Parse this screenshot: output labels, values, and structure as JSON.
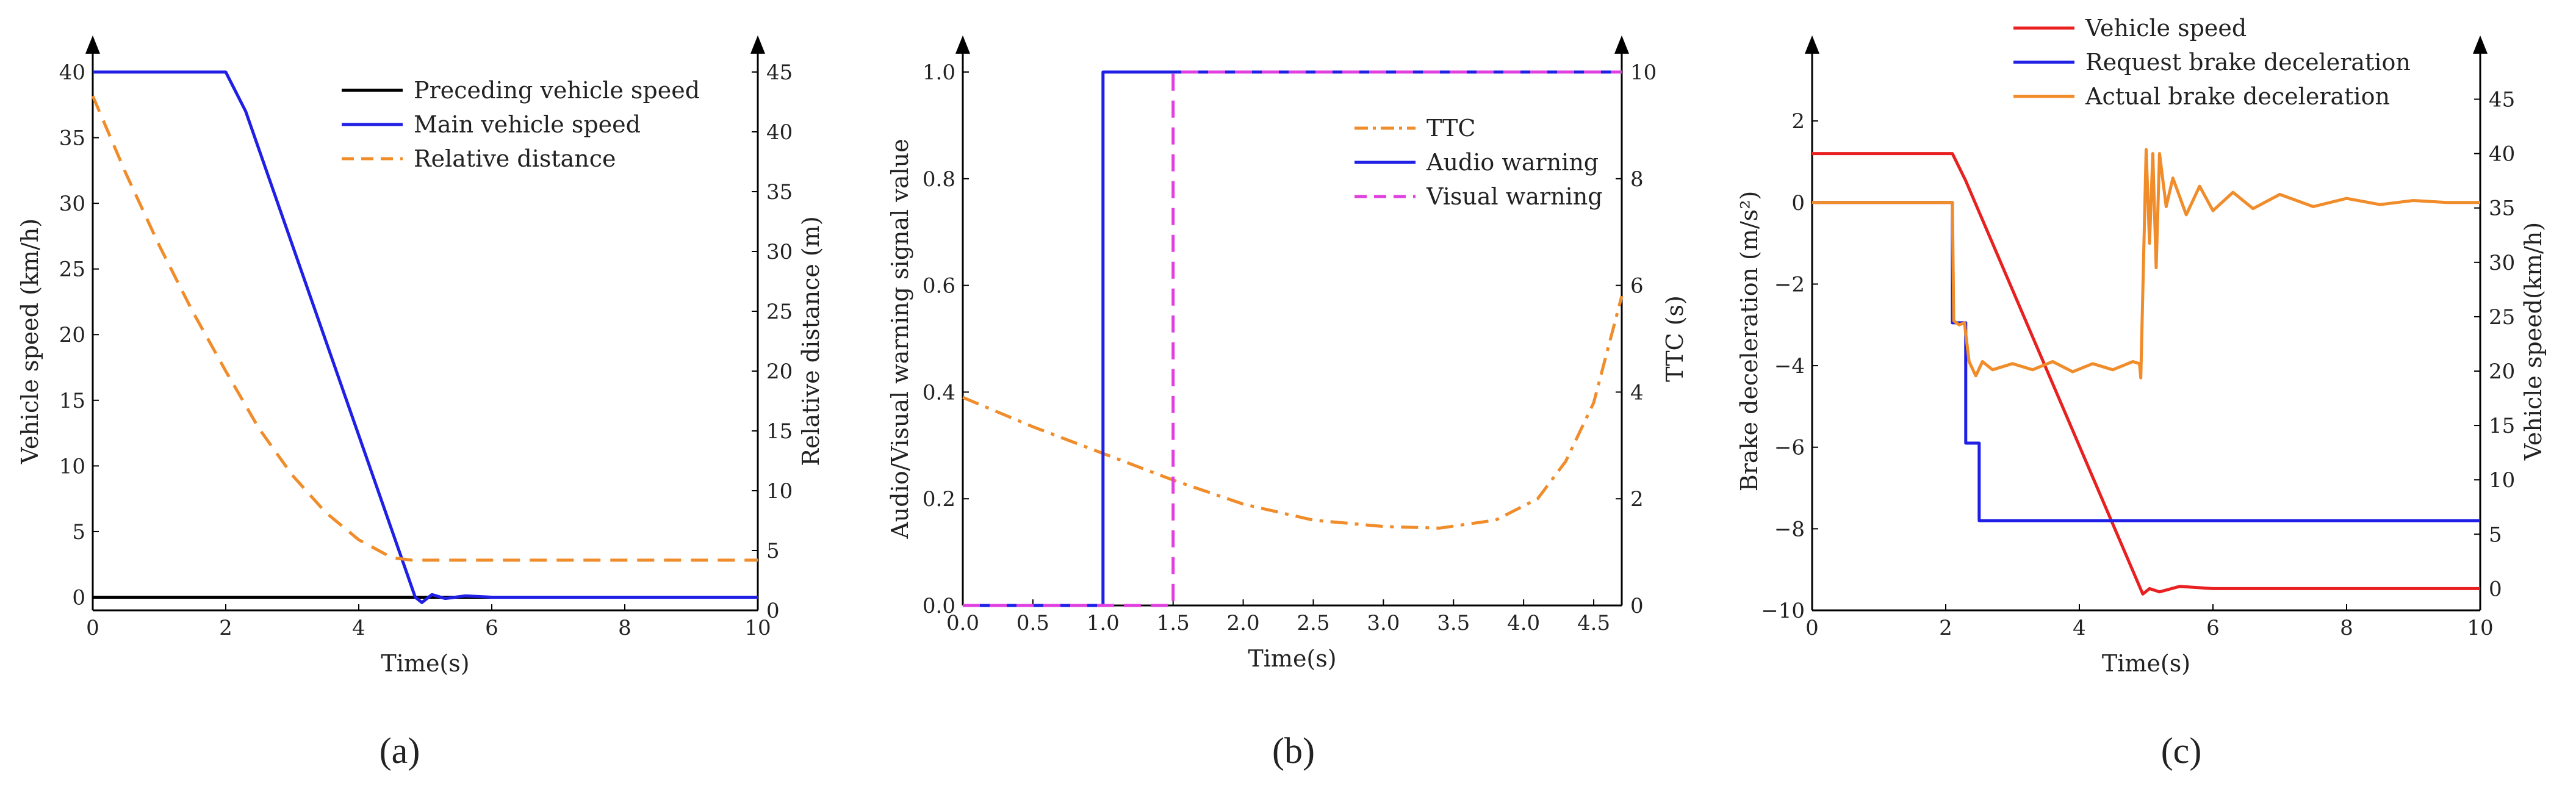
{
  "chart_data": [
    {
      "panel": "a",
      "type": "line",
      "panel_label": "(a)",
      "xlabel": "Time(s)",
      "ylabel_left": "Vehicle speed (km/h)",
      "ylabel_right": "Relative distance (m)",
      "xlim": [
        0,
        10
      ],
      "ylim_left": [
        -1,
        40
      ],
      "ylim_right": [
        0,
        45
      ],
      "xticks": [
        0,
        2,
        4,
        6,
        8,
        10
      ],
      "yticks_left": [
        0,
        5,
        10,
        15,
        20,
        25,
        30,
        35,
        40
      ],
      "yticks_right": [
        0,
        5,
        10,
        15,
        20,
        25,
        30,
        35,
        40,
        45
      ],
      "legend_position": "top-right",
      "series": [
        {
          "name": "Preceding vehicle speed",
          "axis": "left",
          "color": "#000000",
          "dash": "solid",
          "x": [
            0,
            10
          ],
          "y": [
            0,
            0
          ]
        },
        {
          "name": "Main vehicle speed",
          "axis": "left",
          "color": "#1f1fe6",
          "dash": "solid",
          "x": [
            0,
            2.0,
            2.3,
            4.85,
            4.95,
            5.1,
            5.3,
            5.6,
            6.0,
            10
          ],
          "y": [
            40,
            40,
            37,
            0,
            -0.4,
            0.2,
            -0.1,
            0.1,
            0,
            0
          ]
        },
        {
          "name": "Relative distance",
          "axis": "right",
          "color": "#f08c2a",
          "dash": "dashed",
          "x": [
            0,
            0.5,
            1,
            1.5,
            2,
            2.5,
            3,
            3.5,
            4,
            4.5,
            4.8,
            10
          ],
          "y": [
            43,
            36.5,
            30.5,
            25,
            20,
            15.2,
            11.3,
            8.2,
            5.9,
            4.4,
            4.2,
            4.2
          ]
        }
      ]
    },
    {
      "panel": "b",
      "type": "line",
      "panel_label": "(b)",
      "xlabel": "Time(s)",
      "ylabel_left": "Audio/Visual warning signal value",
      "ylabel_right": "TTC (s)",
      "xlim": [
        0,
        4.7
      ],
      "ylim_left": [
        0,
        1.0
      ],
      "ylim_right": [
        0,
        10
      ],
      "xticks": [
        0.0,
        0.5,
        1.0,
        1.5,
        2.0,
        2.5,
        3.0,
        3.5,
        4.0,
        4.5
      ],
      "xtick_labels": [
        "0.0",
        "0.5",
        "1.0",
        "1.5",
        "2.0",
        "2.5",
        "3.0",
        "3.5",
        "4.0",
        "4.5"
      ],
      "yticks_left": [
        0.0,
        0.2,
        0.4,
        0.6,
        0.8,
        1.0
      ],
      "ytick_labels_left": [
        "0.0",
        "0.2",
        "0.4",
        "0.6",
        "0.8",
        "1.0"
      ],
      "yticks_right": [
        0,
        2,
        4,
        6,
        8,
        10
      ],
      "legend_position": "top-right",
      "series": [
        {
          "name": "TTC",
          "axis": "right",
          "color": "#f08c2a",
          "dash": "dashdot",
          "x": [
            0,
            0.5,
            1.0,
            1.5,
            2.0,
            2.5,
            3.0,
            3.4,
            3.8,
            4.1,
            4.3,
            4.5,
            4.7
          ],
          "y": [
            3.9,
            3.35,
            2.85,
            2.35,
            1.9,
            1.6,
            1.48,
            1.45,
            1.6,
            2.0,
            2.7,
            3.8,
            5.8
          ]
        },
        {
          "name": "Audio warning",
          "axis": "left",
          "color": "#1f1fe6",
          "dash": "solid",
          "x": [
            0,
            1.0,
            1.0,
            4.7
          ],
          "y": [
            0,
            0,
            1,
            1
          ]
        },
        {
          "name": "Visual warning",
          "axis": "left",
          "color": "#e040e0",
          "dash": "dashed",
          "x": [
            0,
            1.5,
            1.5,
            4.7
          ],
          "y": [
            0,
            0,
            1,
            1
          ]
        }
      ]
    },
    {
      "panel": "c",
      "type": "line",
      "panel_label": "(c)",
      "xlabel": "Time(s)",
      "ylabel_left": "Brake deceleration (m/s²)",
      "ylabel_right": "Vehicle speed(km/h)",
      "xlim": [
        0,
        10
      ],
      "ylim_left": [
        -10,
        3.2
      ],
      "ylim_right": [
        -2,
        47.5
      ],
      "xticks": [
        0,
        2,
        4,
        6,
        8,
        10
      ],
      "yticks_left": [
        -10,
        -8,
        -6,
        -4,
        -2,
        0,
        2
      ],
      "ytick_labels_left": [
        "−10",
        "−8",
        "−6",
        "−4",
        "−2",
        "0",
        "2"
      ],
      "yticks_right": [
        0,
        5,
        10,
        15,
        20,
        25,
        30,
        35,
        40,
        45
      ],
      "legend_position": "top-right",
      "series": [
        {
          "name": "Vehicle speed",
          "axis": "right",
          "color": "#e82020",
          "dash": "solid",
          "x": [
            0,
            2.1,
            2.3,
            4.95,
            5.05,
            5.2,
            5.5,
            6,
            10
          ],
          "y": [
            40,
            40,
            37.5,
            -0.5,
            0,
            -0.3,
            0.2,
            0,
            0
          ]
        },
        {
          "name": "Request brake deceleration",
          "axis": "left",
          "color": "#1f1fe6",
          "dash": "solid",
          "x": [
            0,
            2.1,
            2.1,
            2.3,
            2.3,
            2.5,
            2.5,
            10
          ],
          "y": [
            0,
            0,
            -2.95,
            -2.95,
            -5.9,
            -5.9,
            -7.8,
            -7.8
          ]
        },
        {
          "name": "Actual brake deceleration",
          "axis": "left",
          "color": "#f08c2a",
          "dash": "solid",
          "x": [
            0,
            2.1,
            2.12,
            2.2,
            2.28,
            2.35,
            2.45,
            2.55,
            2.7,
            3.0,
            3.3,
            3.6,
            3.9,
            4.2,
            4.5,
            4.8,
            4.9,
            4.92,
            4.96,
            5.0,
            5.05,
            5.1,
            5.15,
            5.2,
            5.3,
            5.4,
            5.6,
            5.8,
            6.0,
            6.3,
            6.6,
            7.0,
            7.5,
            8,
            8.5,
            9,
            9.5,
            10
          ],
          "y": [
            0,
            0,
            -2.9,
            -3.0,
            -2.95,
            -3.9,
            -4.25,
            -3.9,
            -4.1,
            -3.95,
            -4.1,
            -3.9,
            -4.15,
            -3.95,
            -4.1,
            -3.9,
            -3.95,
            -4.3,
            -1.5,
            1.3,
            -1.0,
            1.2,
            -1.6,
            1.2,
            -0.1,
            0.6,
            -0.3,
            0.4,
            -0.2,
            0.25,
            -0.15,
            0.2,
            -0.1,
            0.1,
            -0.05,
            0.05,
            0,
            0
          ]
        }
      ]
    }
  ]
}
